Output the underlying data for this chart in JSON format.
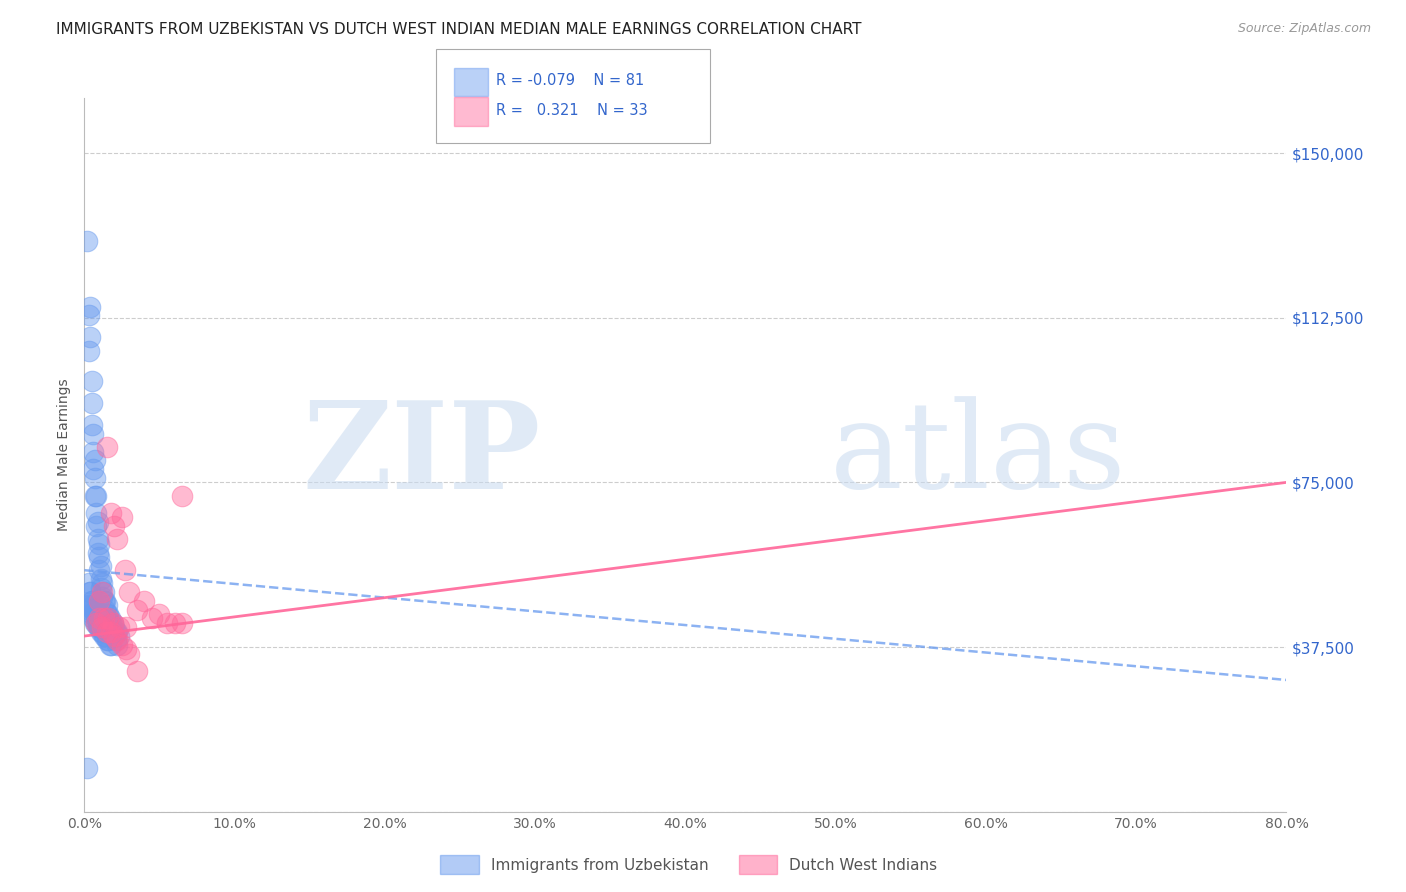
{
  "title": "IMMIGRANTS FROM UZBEKISTAN VS DUTCH WEST INDIAN MEDIAN MALE EARNINGS CORRELATION CHART",
  "source": "Source: ZipAtlas.com",
  "ylabel": "Median Male Earnings",
  "yticks": [
    0,
    37500,
    75000,
    112500,
    150000
  ],
  "ytick_labels": [
    "",
    "$37,500",
    "$75,000",
    "$112,500",
    "$150,000"
  ],
  "xmin": 0.0,
  "xmax": 0.8,
  "ymin": 0,
  "ymax": 162500,
  "color_blue": "#6699ee",
  "color_pink": "#ff6699",
  "color_right_labels": "#3366cc",
  "group1_name": "Immigrants from Uzbekistan",
  "group2_name": "Dutch West Indians",
  "title_fontsize": 11,
  "axis_label_fontsize": 10,
  "tick_label_fontsize": 10,
  "background_color": "#ffffff",
  "grid_color": "#c8c8c8",
  "title_color": "#222222",
  "source_color": "#999999",
  "blue_scatter_x": [
    0.002,
    0.003,
    0.003,
    0.004,
    0.004,
    0.005,
    0.005,
    0.005,
    0.006,
    0.006,
    0.006,
    0.007,
    0.007,
    0.007,
    0.008,
    0.008,
    0.008,
    0.009,
    0.009,
    0.009,
    0.01,
    0.01,
    0.01,
    0.011,
    0.011,
    0.011,
    0.012,
    0.012,
    0.013,
    0.013,
    0.014,
    0.014,
    0.015,
    0.015,
    0.015,
    0.016,
    0.016,
    0.017,
    0.017,
    0.018,
    0.018,
    0.019,
    0.019,
    0.02,
    0.02,
    0.021,
    0.021,
    0.022,
    0.022,
    0.023,
    0.004,
    0.005,
    0.006,
    0.007,
    0.008,
    0.009,
    0.01,
    0.011,
    0.012,
    0.013,
    0.014,
    0.015,
    0.016,
    0.017,
    0.018,
    0.003,
    0.004,
    0.005,
    0.006,
    0.007,
    0.008,
    0.009,
    0.003,
    0.004,
    0.005,
    0.006,
    0.007,
    0.008,
    0.009,
    0.01,
    0.002
  ],
  "blue_scatter_y": [
    130000,
    113000,
    105000,
    115000,
    108000,
    98000,
    93000,
    88000,
    86000,
    82000,
    78000,
    80000,
    76000,
    72000,
    72000,
    68000,
    65000,
    66000,
    62000,
    59000,
    61000,
    58000,
    55000,
    56000,
    53000,
    51000,
    52000,
    49000,
    50000,
    48000,
    48000,
    46000,
    47000,
    45000,
    44000,
    45000,
    43000,
    44000,
    42000,
    43000,
    41000,
    43000,
    41000,
    42000,
    40000,
    41000,
    39000,
    41000,
    38000,
    40000,
    50000,
    48000,
    46000,
    45000,
    44000,
    43000,
    42000,
    41000,
    41000,
    40000,
    40000,
    39000,
    39000,
    38000,
    38000,
    52000,
    50000,
    48000,
    47000,
    46000,
    45000,
    44000,
    47000,
    46000,
    45000,
    44000,
    43000,
    43000,
    42000,
    42000,
    10000
  ],
  "pink_scatter_x": [
    0.008,
    0.01,
    0.012,
    0.013,
    0.015,
    0.016,
    0.018,
    0.019,
    0.02,
    0.022,
    0.023,
    0.025,
    0.027,
    0.028,
    0.03,
    0.035,
    0.04,
    0.045,
    0.05,
    0.055,
    0.06,
    0.065,
    0.065,
    0.01,
    0.012,
    0.015,
    0.018,
    0.02,
    0.022,
    0.025,
    0.028,
    0.03,
    0.035
  ],
  "pink_scatter_y": [
    43000,
    48000,
    50000,
    44000,
    83000,
    44000,
    68000,
    43000,
    65000,
    62000,
    42000,
    67000,
    55000,
    42000,
    50000,
    46000,
    48000,
    44000,
    45000,
    43000,
    43000,
    43000,
    72000,
    44000,
    42000,
    41000,
    41000,
    40000,
    39000,
    38000,
    37000,
    36000,
    32000
  ],
  "blue_trend_x": [
    0.0,
    0.8
  ],
  "blue_trend_y": [
    55000,
    30000
  ],
  "pink_trend_x": [
    0.0,
    0.8
  ],
  "pink_trend_y": [
    40000,
    75000
  ]
}
